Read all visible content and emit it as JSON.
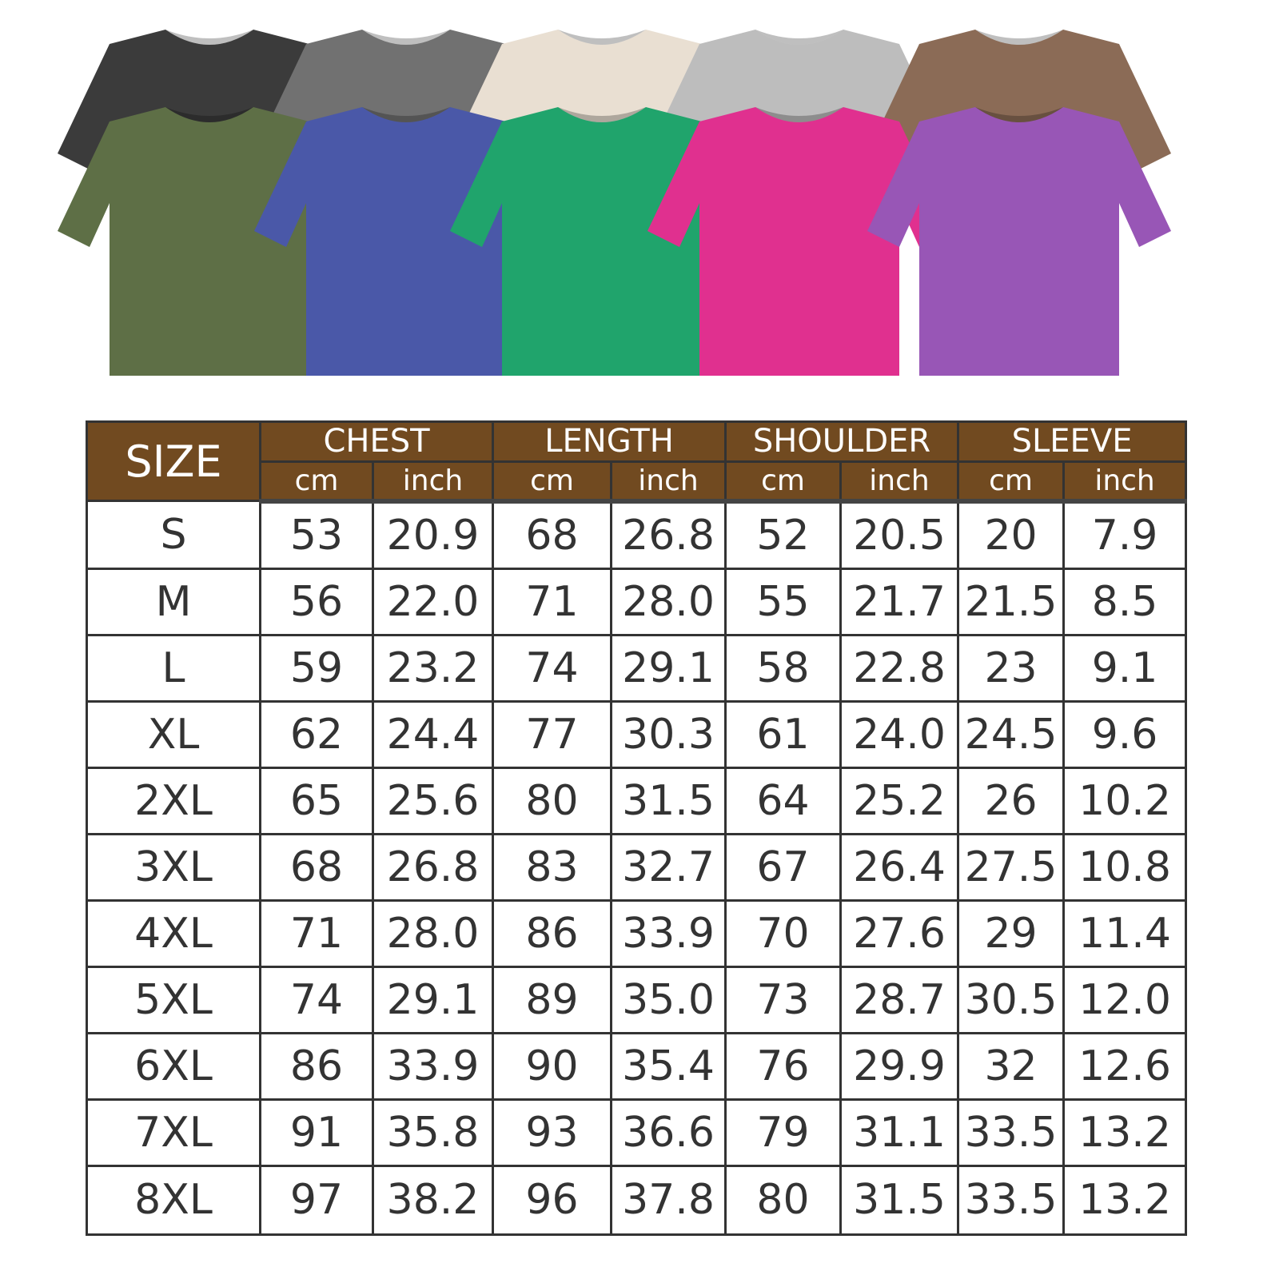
{
  "shirts": {
    "back_row": [
      {
        "color_name": "black",
        "hex": "#3b3b3b"
      },
      {
        "color_name": "dark-gray",
        "hex": "#717171"
      },
      {
        "color_name": "cream",
        "hex": "#e9dfd2"
      },
      {
        "color_name": "light-gray",
        "hex": "#bdbdbd"
      },
      {
        "color_name": "brown",
        "hex": "#8b6b56"
      }
    ],
    "front_row": [
      {
        "color_name": "olive",
        "hex": "#5e6f46"
      },
      {
        "color_name": "blue",
        "hex": "#4a58a8"
      },
      {
        "color_name": "green",
        "hex": "#20a46c"
      },
      {
        "color_name": "pink",
        "hex": "#e0308f"
      },
      {
        "color_name": "purple",
        "hex": "#9856b6"
      }
    ]
  },
  "table": {
    "header_color": "#714a20",
    "size_label": "SIZE",
    "groups": [
      "CHEST",
      "LENGTH",
      "SHOULDER",
      "SLEEVE"
    ],
    "units": [
      "cm",
      "inch"
    ],
    "rows": [
      [
        "S",
        "53",
        "20.9",
        "68",
        "26.8",
        "52",
        "20.5",
        "20",
        "7.9"
      ],
      [
        "M",
        "56",
        "22.0",
        "71",
        "28.0",
        "55",
        "21.7",
        "21.5",
        "8.5"
      ],
      [
        "L",
        "59",
        "23.2",
        "74",
        "29.1",
        "58",
        "22.8",
        "23",
        "9.1"
      ],
      [
        "XL",
        "62",
        "24.4",
        "77",
        "30.3",
        "61",
        "24.0",
        "24.5",
        "9.6"
      ],
      [
        "2XL",
        "65",
        "25.6",
        "80",
        "31.5",
        "64",
        "25.2",
        "26",
        "10.2"
      ],
      [
        "3XL",
        "68",
        "26.8",
        "83",
        "32.7",
        "67",
        "26.4",
        "27.5",
        "10.8"
      ],
      [
        "4XL",
        "71",
        "28.0",
        "86",
        "33.9",
        "70",
        "27.6",
        "29",
        "11.4"
      ],
      [
        "5XL",
        "74",
        "29.1",
        "89",
        "35.0",
        "73",
        "28.7",
        "30.5",
        "12.0"
      ],
      [
        "6XL",
        "86",
        "33.9",
        "90",
        "35.4",
        "76",
        "29.9",
        "32",
        "12.6"
      ],
      [
        "7XL",
        "91",
        "35.8",
        "93",
        "36.6",
        "79",
        "31.1",
        "33.5",
        "13.2"
      ],
      [
        "8XL",
        "97",
        "38.2",
        "96",
        "37.8",
        "80",
        "31.5",
        "33.5",
        "13.2"
      ]
    ]
  }
}
